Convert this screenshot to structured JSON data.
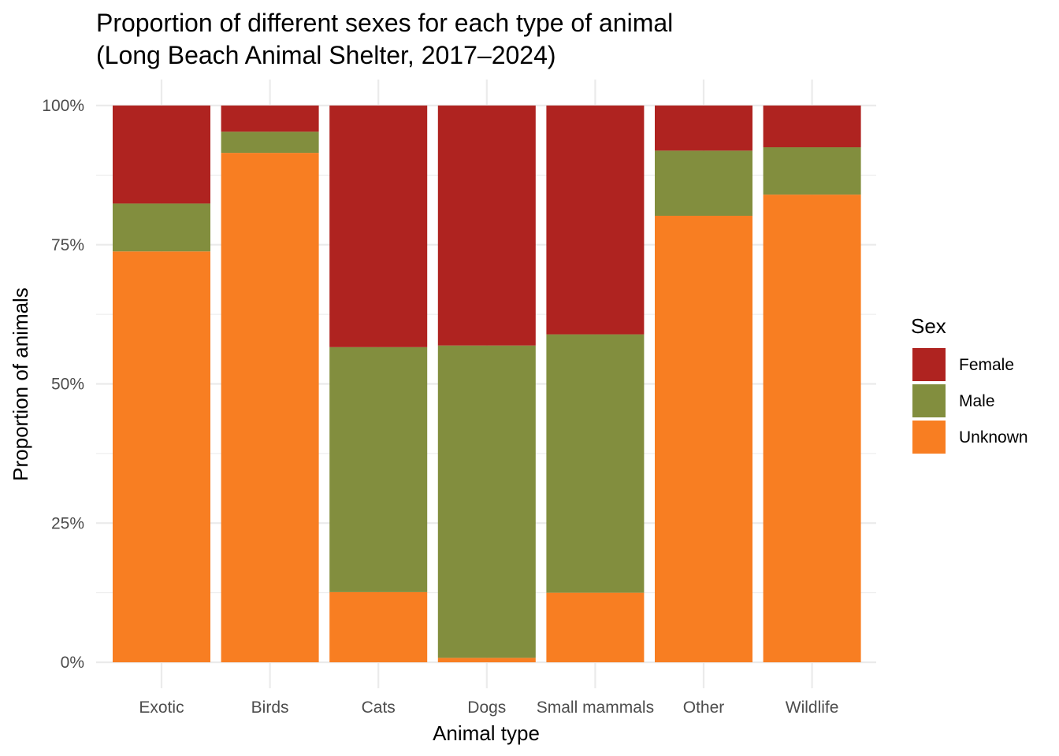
{
  "chart_data": {
    "type": "bar",
    "stacked": true,
    "normalized": true,
    "title": "Proportion of different sexes for each type of animal",
    "subtitle": "(Long Beach Animal Shelter, 2017–2024)",
    "xlabel": "Animal type",
    "ylabel": "Proportion of animals",
    "ylim": [
      0,
      1
    ],
    "y_ticks": [
      0,
      0.25,
      0.5,
      0.75,
      1.0
    ],
    "y_tick_labels": [
      "0%",
      "25%",
      "50%",
      "75%",
      "100%"
    ],
    "grid": true,
    "legend_position": "right",
    "legend_title": "Sex",
    "categories": [
      "Exotic",
      "Birds",
      "Cats",
      "Dogs",
      "Small mammals",
      "Other",
      "Wildlife"
    ],
    "series": [
      {
        "name": "Female",
        "color": "#AF2320",
        "values": [
          0.176,
          0.047,
          0.434,
          0.431,
          0.411,
          0.081,
          0.075
        ]
      },
      {
        "name": "Male",
        "color": "#828E3E",
        "values": [
          0.086,
          0.038,
          0.44,
          0.561,
          0.464,
          0.117,
          0.085
        ]
      },
      {
        "name": "Unknown",
        "color": "#F87E22",
        "values": [
          0.738,
          0.915,
          0.126,
          0.008,
          0.125,
          0.802,
          0.84
        ]
      }
    ]
  }
}
